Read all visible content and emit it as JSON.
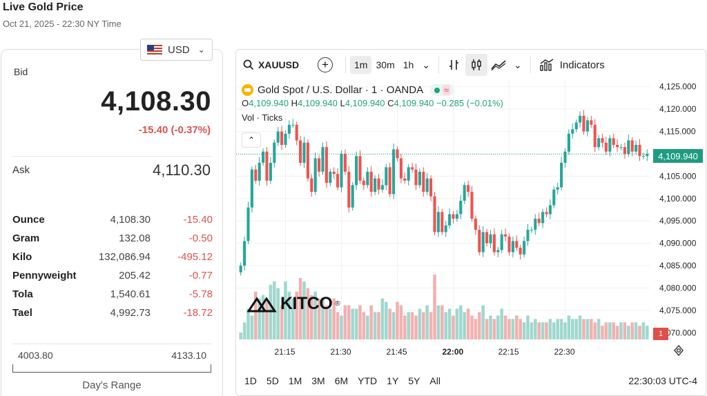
{
  "header": {
    "title": "Live Gold Price",
    "date": "Oct 21, 2025 - 22:30 NY Time"
  },
  "currency": {
    "selected": "USD"
  },
  "bid": {
    "label": "Bid",
    "value": "4,108.30",
    "change": "-15.40 (-0.37%)"
  },
  "ask": {
    "label": "Ask",
    "value": "4,110.30"
  },
  "units": [
    {
      "name": "Ounce",
      "value": "4,108.30",
      "change": "-15.40"
    },
    {
      "name": "Gram",
      "value": "132.08",
      "change": "-0.50"
    },
    {
      "name": "Kilo",
      "value": "132,086.94",
      "change": "-495.12"
    },
    {
      "name": "Pennyweight",
      "value": "205.42",
      "change": "-0.77"
    },
    {
      "name": "Tola",
      "value": "1,540.61",
      "change": "-5.78"
    },
    {
      "name": "Tael",
      "value": "4,992.73",
      "change": "-18.72"
    }
  ],
  "range": {
    "low": "4003.80",
    "high": "4133.10",
    "label": "Day's Range"
  },
  "toolbar": {
    "symbol": "XAUUSD",
    "intervals": [
      "1m",
      "30m",
      "1h"
    ],
    "active_interval": "1m",
    "indicators_label": "Indicators"
  },
  "legend": {
    "title": "Gold Spot / U.S. Dollar · 1 · OANDA",
    "o_label": "O",
    "o": "4,109.940",
    "h_label": "H",
    "h": "4,109.940",
    "l_label": "L",
    "l": "4,109.940",
    "c_label": "C",
    "c": "4,109.940",
    "change": "−0.285 (−0.01%)",
    "vol_label": "Vol · Ticks"
  },
  "brand": {
    "name": "KITCO",
    "mark": "®"
  },
  "current_price_tag": "4,109.940",
  "red_badge": "1",
  "bottom": {
    "ranges": [
      "1D",
      "5D",
      "1M",
      "3M",
      "6M",
      "YTD",
      "1Y",
      "5Y",
      "All"
    ],
    "clock": "22:30:03 UTC-4"
  },
  "colors": {
    "up": "#26a69a",
    "down": "#ef5350",
    "vol_up": "#9fd8cf",
    "vol_down": "#f2b1b0",
    "price_line": "#1f9b82"
  },
  "chart_data": {
    "type": "candlestick",
    "title": "Gold Spot / U.S. Dollar · 1 · OANDA",
    "y_ticks": [
      "4,125.000",
      "4,120.000",
      "4,115.000",
      "4,110.000",
      "4,105.000",
      "4,100.000",
      "4,095.000",
      "4,090.000",
      "4,085.000",
      "4,080.000",
      "4,075.000",
      "4,070.000"
    ],
    "x_ticks": [
      "21:15",
      "21:30",
      "21:45",
      "22:00",
      "22:15",
      "22:30"
    ],
    "ylim": [
      4068.5,
      4126.5
    ],
    "current_price": 4109.94,
    "close": [
      4085.0,
      4090.5,
      4098.0,
      4106.5,
      4104.0,
      4108.0,
      4110.5,
      4104.0,
      4108.0,
      4112.5,
      4115.0,
      4112.0,
      4114.5,
      4116.5,
      4116.5,
      4113.0,
      4108.0,
      4112.5,
      4104.5,
      4101.5,
      4109.0,
      4106.0,
      4111.5,
      4103.5,
      4106.0,
      4105.5,
      4102.5,
      4110.0,
      4106.0,
      4098.0,
      4103.0,
      4109.5,
      4104.0,
      4103.0,
      4106.0,
      4101.5,
      4104.5,
      4102.0,
      4103.0,
      4107.0,
      4101.0,
      4111.0,
      4109.0,
      4104.5,
      4104.0,
      4107.0,
      4106.5,
      4103.0,
      4106.0,
      4101.5,
      4104.5,
      4100.5,
      4092.5,
      4097.0,
      4092.5,
      4094.0,
      4096.5,
      4095.5,
      4096.5,
      4099.5,
      4103.0,
      4101.5,
      4095.5,
      4093.0,
      4088.0,
      4092.5,
      4090.0,
      4092.0,
      4088.0,
      4088.5,
      4092.0,
      4091.5,
      4088.0,
      4090.5,
      4089.0,
      4087.5,
      4090.5,
      4093.0,
      4093.0,
      4095.5,
      4094.5,
      4097.0,
      4096.5,
      4098.5,
      4102.0,
      4102.5,
      4108.0,
      4110.5,
      4114.5,
      4115.5,
      4117.0,
      4118.5,
      4115.0,
      4117.5,
      4116.5,
      4111.5,
      4113.5,
      4112.5,
      4110.5,
      4113.5,
      4112.0,
      4111.5,
      4111.5,
      4110.0,
      4113.0,
      4110.5,
      4112.0,
      4109.5,
      4109.5,
      4110.0
    ],
    "volume": [
      2,
      5,
      9,
      7,
      14,
      12,
      13,
      11,
      16,
      17,
      15,
      10,
      17,
      14,
      12,
      14,
      18,
      17,
      15,
      13,
      14,
      12,
      12,
      10,
      9,
      12,
      8,
      7,
      10,
      10,
      9,
      9,
      10,
      8,
      7,
      10,
      8,
      8,
      12,
      11,
      9,
      8,
      11,
      10,
      7,
      8,
      8,
      7,
      9,
      8,
      10,
      8,
      19,
      10,
      10,
      8,
      9,
      7,
      9,
      10,
      8,
      9,
      7,
      6,
      8,
      10,
      6,
      7,
      6,
      7,
      9,
      7,
      6,
      6,
      7,
      6,
      5,
      7,
      5,
      6,
      5,
      5,
      5,
      6,
      5,
      6,
      6,
      5,
      7,
      6,
      6,
      7,
      6,
      6,
      6,
      5,
      6,
      4,
      5,
      5,
      5,
      4,
      5,
      5,
      4,
      5,
      5,
      4,
      5,
      4
    ]
  }
}
